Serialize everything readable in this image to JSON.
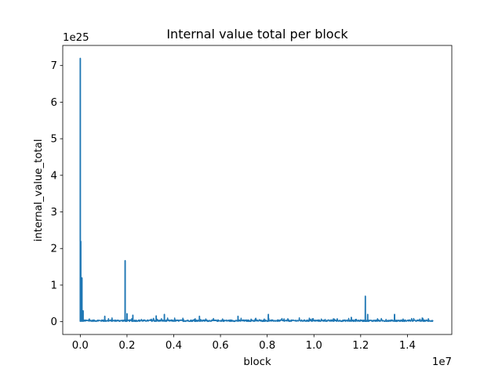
{
  "chart_data": {
    "type": "line",
    "title": "Internal value total per block",
    "xlabel": "block",
    "ylabel": "internal_value_total",
    "x_multiplier_label": "1e7",
    "y_multiplier_label": "1e25",
    "xlim": [
      -750000,
      15900000
    ],
    "ylim": [
      -3.5e+24,
      7.55e+25
    ],
    "x_ticks": [
      {
        "value": 0,
        "label": "0.0"
      },
      {
        "value": 2000000,
        "label": "0.2"
      },
      {
        "value": 4000000,
        "label": "0.4"
      },
      {
        "value": 6000000,
        "label": "0.6"
      },
      {
        "value": 8000000,
        "label": "0.8"
      },
      {
        "value": 10000000,
        "label": "1.0"
      },
      {
        "value": 12000000,
        "label": "1.2"
      },
      {
        "value": 14000000,
        "label": "1.4"
      }
    ],
    "y_ticks": [
      {
        "value": 0,
        "label": "0"
      },
      {
        "value": 1e+25,
        "label": "1"
      },
      {
        "value": 2e+25,
        "label": "2"
      },
      {
        "value": 3e+25,
        "label": "3"
      },
      {
        "value": 4e+25,
        "label": "4"
      },
      {
        "value": 5e+25,
        "label": "5"
      },
      {
        "value": 6e+25,
        "label": "6"
      },
      {
        "value": 7e+25,
        "label": "7"
      }
    ],
    "grid": false,
    "line_color": "#1f77b4",
    "x_range": [
      0,
      15100000
    ],
    "baseline_typical": 3e+23,
    "peaks": [
      {
        "x": 0,
        "y": 7.2e+25
      },
      {
        "x": 20000,
        "y": 2.2e+25
      },
      {
        "x": 70000,
        "y": 1.2e+25
      },
      {
        "x": 120000,
        "y": 3e+24
      },
      {
        "x": 1050000,
        "y": 1.5e+24
      },
      {
        "x": 1920000,
        "y": 1.67e+25
      },
      {
        "x": 2000000,
        "y": 2.2e+24
      },
      {
        "x": 2250000,
        "y": 1.8e+24
      },
      {
        "x": 3250000,
        "y": 1.6e+24
      },
      {
        "x": 3600000,
        "y": 2e+24
      },
      {
        "x": 5100000,
        "y": 1.5e+24
      },
      {
        "x": 6750000,
        "y": 1.5e+24
      },
      {
        "x": 8050000,
        "y": 2e+24
      },
      {
        "x": 11600000,
        "y": 1.2e+24
      },
      {
        "x": 12200000,
        "y": 7e+24
      },
      {
        "x": 12300000,
        "y": 2e+24
      },
      {
        "x": 13450000,
        "y": 2e+24
      },
      {
        "x": 14900000,
        "y": 8e+23
      }
    ]
  }
}
